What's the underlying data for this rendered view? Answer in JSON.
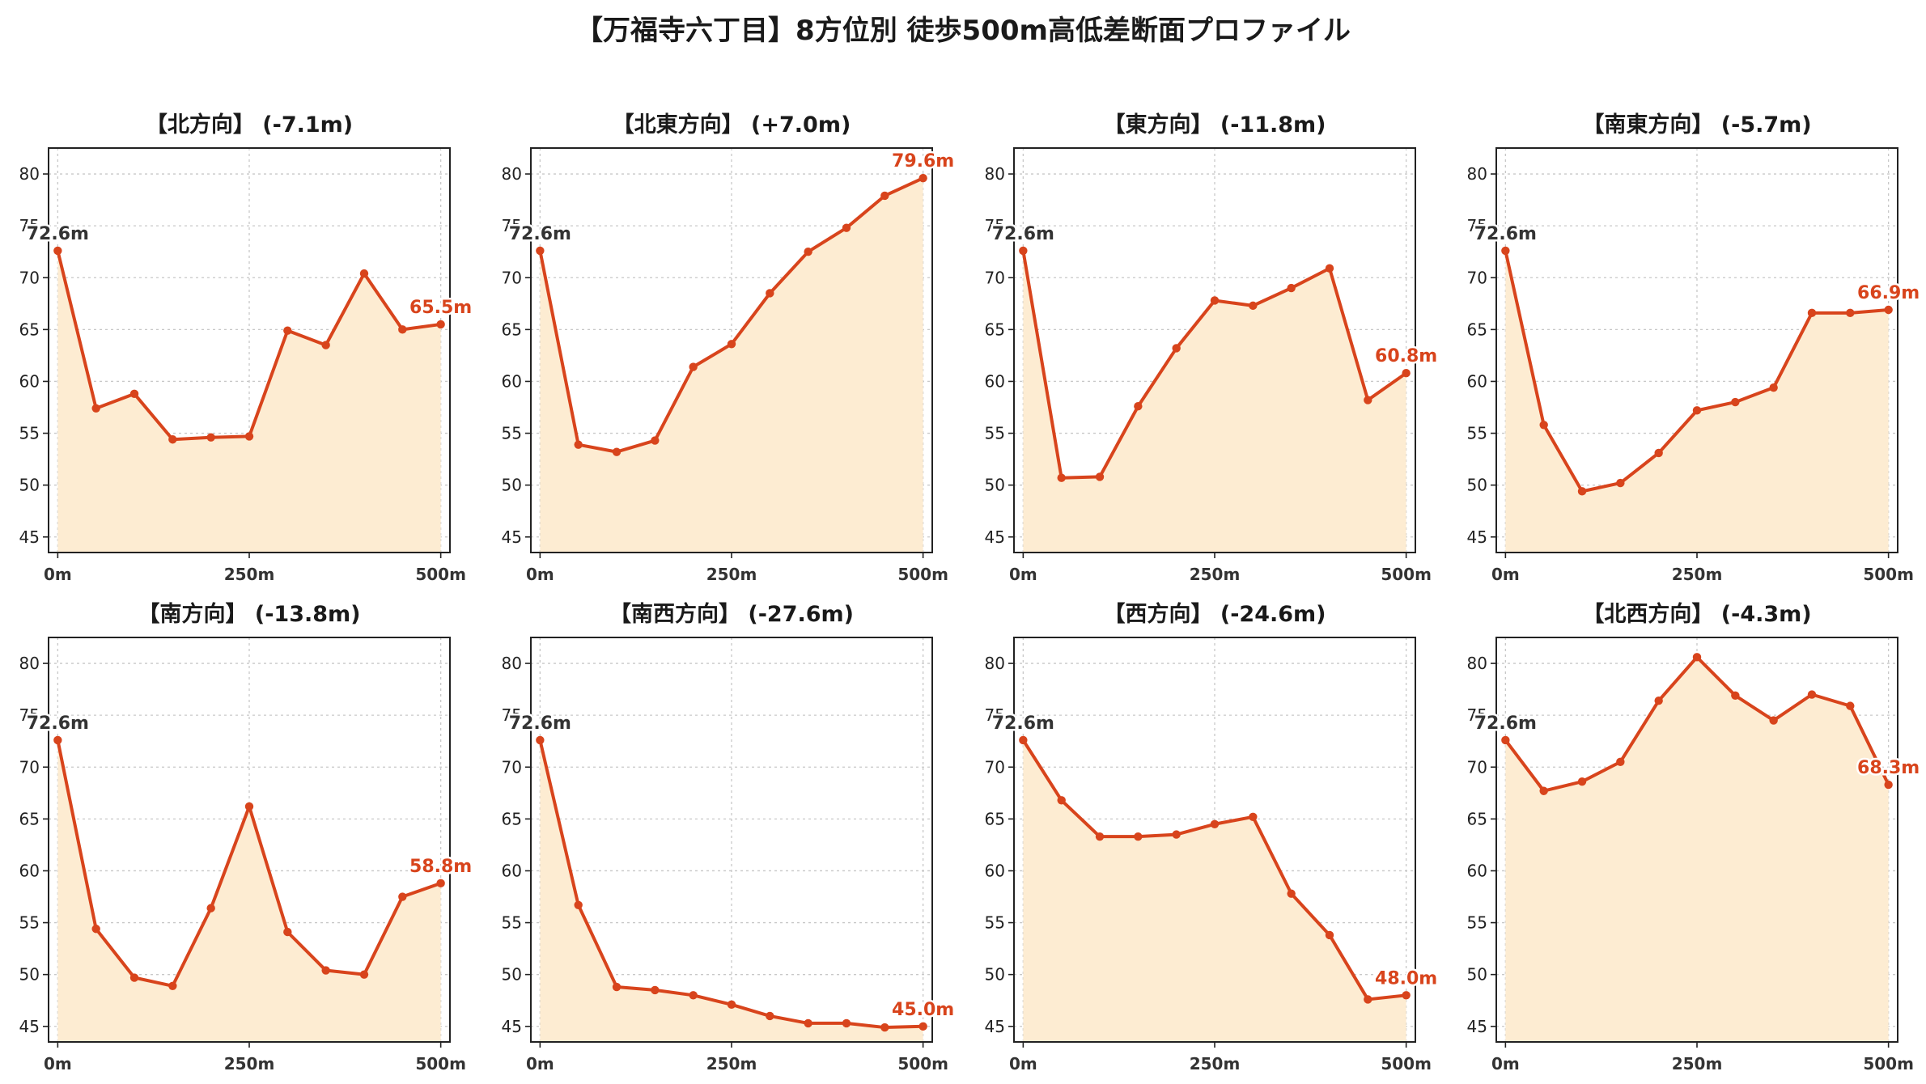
{
  "title": "【万福寺六丁目】8方位別 徒歩500m高低差断面プロファイル",
  "colors": {
    "line": "#d8441c",
    "fill": "#fdecd2",
    "start_label": "#333333",
    "end_label": "#d8441c",
    "grid": "#c8c8c8",
    "axis": "#222222"
  },
  "chart_data": [
    {
      "type": "area",
      "title": "【北方向】 (-7.1m)",
      "x": [
        0,
        50,
        100,
        150,
        200,
        250,
        300,
        350,
        400,
        450,
        500
      ],
      "values": [
        72.6,
        57.4,
        58.8,
        54.4,
        54.6,
        54.7,
        64.9,
        63.5,
        70.4,
        65.0,
        65.5
      ],
      "start_label": "72.6m",
      "end_label": "65.5m",
      "xticks": [
        "0m",
        "250m",
        "500m"
      ],
      "yticks": [
        "45",
        "50",
        "55",
        "60",
        "65",
        "70",
        "75",
        "80"
      ],
      "ylim": [
        43.5,
        82.5
      ],
      "xlim": [
        -12,
        512
      ],
      "grid": true
    },
    {
      "type": "area",
      "title": "【北東方向】 (+7.0m)",
      "x": [
        0,
        50,
        100,
        150,
        200,
        250,
        300,
        350,
        400,
        450,
        500
      ],
      "values": [
        72.6,
        53.9,
        53.2,
        54.3,
        61.4,
        63.6,
        68.5,
        72.5,
        74.8,
        77.9,
        79.6
      ],
      "start_label": "72.6m",
      "end_label": "79.6m",
      "xticks": [
        "0m",
        "250m",
        "500m"
      ],
      "yticks": [
        "45",
        "50",
        "55",
        "60",
        "65",
        "70",
        "75",
        "80"
      ],
      "ylim": [
        43.5,
        82.5
      ],
      "xlim": [
        -12,
        512
      ],
      "grid": true
    },
    {
      "type": "area",
      "title": "【東方向】 (-11.8m)",
      "x": [
        0,
        50,
        100,
        150,
        200,
        250,
        300,
        350,
        400,
        450,
        500
      ],
      "values": [
        72.6,
        50.7,
        50.8,
        57.6,
        63.2,
        67.8,
        67.3,
        69.0,
        70.9,
        58.2,
        60.8
      ],
      "start_label": "72.6m",
      "end_label": "60.8m",
      "xticks": [
        "0m",
        "250m",
        "500m"
      ],
      "yticks": [
        "45",
        "50",
        "55",
        "60",
        "65",
        "70",
        "75",
        "80"
      ],
      "ylim": [
        43.5,
        82.5
      ],
      "xlim": [
        -12,
        512
      ],
      "grid": true
    },
    {
      "type": "area",
      "title": "【南東方向】 (-5.7m)",
      "x": [
        0,
        50,
        100,
        150,
        200,
        250,
        300,
        350,
        400,
        450,
        500
      ],
      "values": [
        72.6,
        55.8,
        49.4,
        50.2,
        53.1,
        57.2,
        58.0,
        59.4,
        66.6,
        66.6,
        66.9
      ],
      "start_label": "72.6m",
      "end_label": "66.9m",
      "xticks": [
        "0m",
        "250m",
        "500m"
      ],
      "yticks": [
        "45",
        "50",
        "55",
        "60",
        "65",
        "70",
        "75",
        "80"
      ],
      "ylim": [
        43.5,
        82.5
      ],
      "xlim": [
        -12,
        512
      ],
      "grid": true
    },
    {
      "type": "area",
      "title": "【南方向】 (-13.8m)",
      "x": [
        0,
        50,
        100,
        150,
        200,
        250,
        300,
        350,
        400,
        450,
        500
      ],
      "values": [
        72.6,
        54.4,
        49.7,
        48.9,
        56.4,
        66.2,
        54.1,
        50.4,
        50.0,
        57.5,
        58.8
      ],
      "start_label": "72.6m",
      "end_label": "58.8m",
      "xticks": [
        "0m",
        "250m",
        "500m"
      ],
      "yticks": [
        "45",
        "50",
        "55",
        "60",
        "65",
        "70",
        "75",
        "80"
      ],
      "ylim": [
        43.5,
        82.5
      ],
      "xlim": [
        -12,
        512
      ],
      "grid": true
    },
    {
      "type": "area",
      "title": "【南西方向】 (-27.6m)",
      "x": [
        0,
        50,
        100,
        150,
        200,
        250,
        300,
        350,
        400,
        450,
        500
      ],
      "values": [
        72.6,
        56.7,
        48.8,
        48.5,
        48.0,
        47.1,
        46.0,
        45.3,
        45.3,
        44.9,
        45.0
      ],
      "start_label": "72.6m",
      "end_label": "45.0m",
      "xticks": [
        "0m",
        "250m",
        "500m"
      ],
      "yticks": [
        "45",
        "50",
        "55",
        "60",
        "65",
        "70",
        "75",
        "80"
      ],
      "ylim": [
        43.5,
        82.5
      ],
      "xlim": [
        -12,
        512
      ],
      "grid": true
    },
    {
      "type": "area",
      "title": "【西方向】 (-24.6m)",
      "x": [
        0,
        50,
        100,
        150,
        200,
        250,
        300,
        350,
        400,
        450,
        500
      ],
      "values": [
        72.6,
        66.8,
        63.3,
        63.3,
        63.5,
        64.5,
        65.2,
        57.8,
        53.8,
        47.6,
        48.0
      ],
      "start_label": "72.6m",
      "end_label": "48.0m",
      "xticks": [
        "0m",
        "250m",
        "500m"
      ],
      "yticks": [
        "45",
        "50",
        "55",
        "60",
        "65",
        "70",
        "75",
        "80"
      ],
      "ylim": [
        43.5,
        82.5
      ],
      "xlim": [
        -12,
        512
      ],
      "grid": true
    },
    {
      "type": "area",
      "title": "【北西方向】 (-4.3m)",
      "x": [
        0,
        50,
        100,
        150,
        200,
        250,
        300,
        350,
        400,
        450,
        500
      ],
      "values": [
        72.6,
        67.7,
        68.6,
        70.5,
        76.4,
        80.6,
        76.9,
        74.5,
        77.0,
        75.9,
        68.3
      ],
      "start_label": "72.6m",
      "end_label": "68.3m",
      "xticks": [
        "0m",
        "250m",
        "500m"
      ],
      "yticks": [
        "45",
        "50",
        "55",
        "60",
        "65",
        "70",
        "75",
        "80"
      ],
      "ylim": [
        43.5,
        82.5
      ],
      "xlim": [
        -12,
        512
      ],
      "grid": true
    }
  ]
}
